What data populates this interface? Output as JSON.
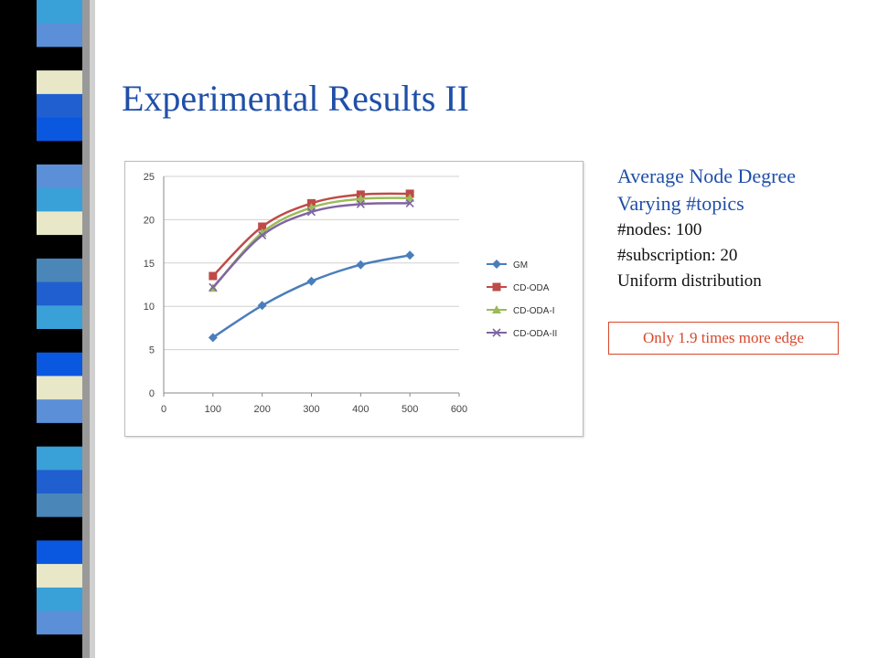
{
  "slide": {
    "title": "Experimental Results II",
    "info": {
      "heading1": "Average Node Degree",
      "heading2": "Varying #topics",
      "nodes": "#nodes: 100",
      "subscription": "#subscription: 20",
      "distribution": "Uniform distribution"
    },
    "callout": "Only 1.9 times more edge"
  },
  "side_bar_colors": [
    "#000000",
    "#3aa0d8",
    "#5b8fd8",
    "#1f5fd0",
    "#e8e8c8",
    "#4a86b8",
    "#0a58e0"
  ],
  "chart_data": {
    "type": "line",
    "x": [
      100,
      200,
      300,
      400,
      500
    ],
    "xlim": [
      0,
      600
    ],
    "ylim": [
      0,
      25
    ],
    "xticks": [
      0,
      100,
      200,
      300,
      400,
      500,
      600
    ],
    "yticks": [
      0,
      5,
      10,
      15,
      20,
      25
    ],
    "grid": "horizontal",
    "legend_position": "right",
    "series": [
      {
        "name": "GM",
        "values": [
          6.4,
          10.1,
          12.9,
          14.8,
          15.9
        ],
        "color": "#4a7ebb",
        "marker": "diamond"
      },
      {
        "name": "CD-ODA",
        "values": [
          13.5,
          19.2,
          21.9,
          22.9,
          23.0
        ],
        "color": "#be4b48",
        "marker": "square"
      },
      {
        "name": "CD-ODA-I",
        "values": [
          12.1,
          18.5,
          21.4,
          22.4,
          22.5
        ],
        "color": "#9bbb59",
        "marker": "triangle"
      },
      {
        "name": "CD-ODA-II",
        "values": [
          12.2,
          18.2,
          20.9,
          21.8,
          21.9
        ],
        "color": "#8064a2",
        "marker": "x"
      }
    ]
  }
}
